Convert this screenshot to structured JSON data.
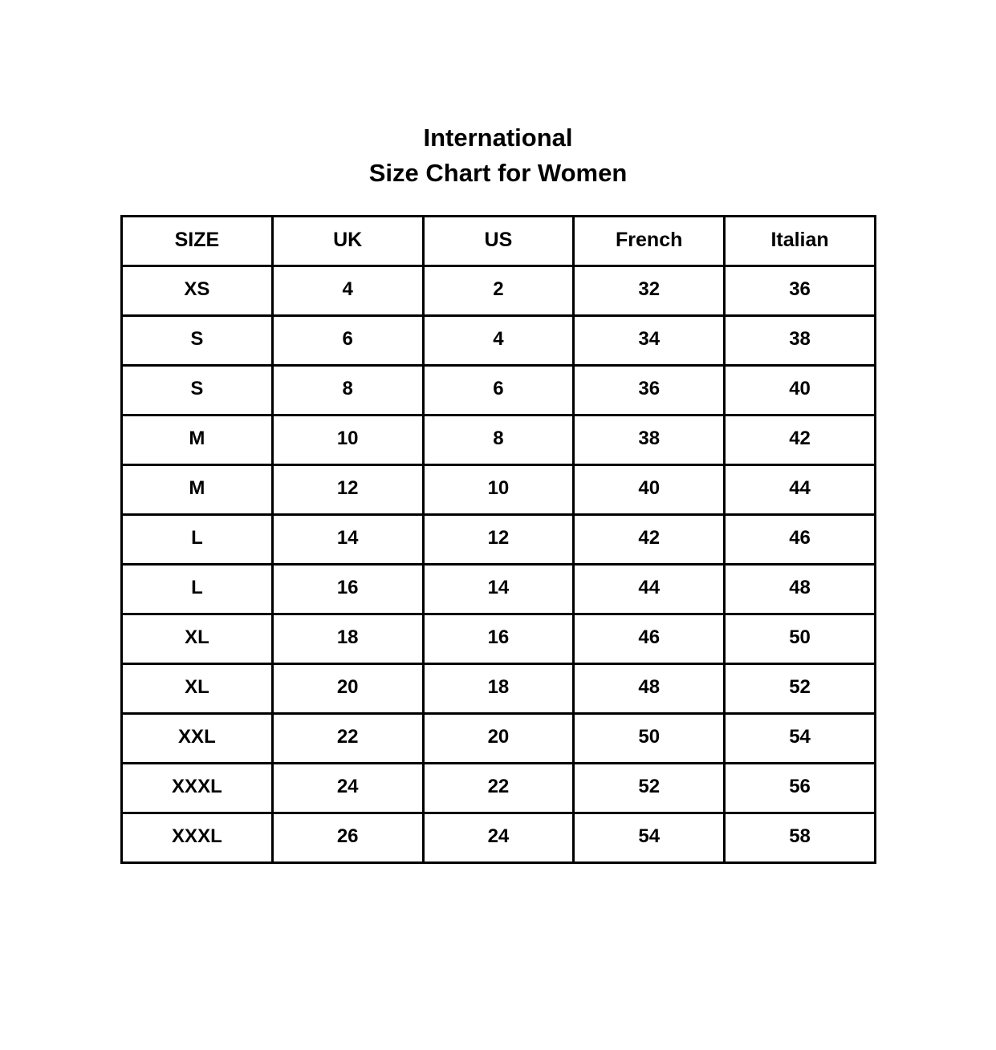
{
  "title": {
    "line1": "International",
    "line2": "Size Chart for Women"
  },
  "headers": [
    "SIZE",
    "UK",
    "US",
    "French",
    "Italian"
  ],
  "rows": [
    [
      "XS",
      "4",
      "2",
      "32",
      "36"
    ],
    [
      "S",
      "6",
      "4",
      "34",
      "38"
    ],
    [
      "S",
      "8",
      "6",
      "36",
      "40"
    ],
    [
      "M",
      "10",
      "8",
      "38",
      "42"
    ],
    [
      "M",
      "12",
      "10",
      "40",
      "44"
    ],
    [
      "L",
      "14",
      "12",
      "42",
      "46"
    ],
    [
      "L",
      "16",
      "14",
      "44",
      "48"
    ],
    [
      "XL",
      "18",
      "16",
      "46",
      "50"
    ],
    [
      "XL",
      "20",
      "18",
      "48",
      "52"
    ],
    [
      "XXL",
      "22",
      "20",
      "50",
      "54"
    ],
    [
      "XXXL",
      "24",
      "22",
      "52",
      "56"
    ],
    [
      "XXXL",
      "26",
      "24",
      "54",
      "58"
    ]
  ]
}
